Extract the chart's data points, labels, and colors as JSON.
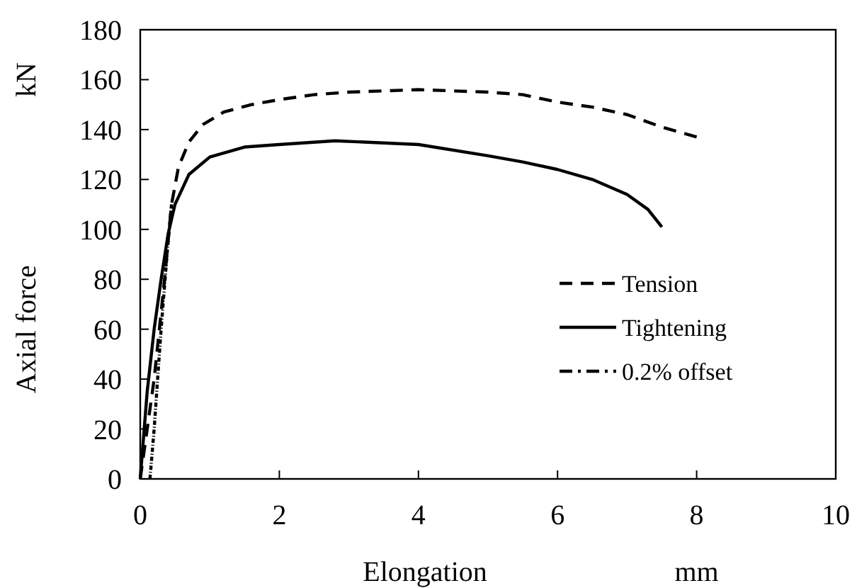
{
  "chart_data": {
    "type": "line",
    "xlabel": "Elongation",
    "ylabel": "Axial force",
    "annotations": [
      "kN",
      "mm"
    ],
    "xlim": [
      0,
      10
    ],
    "xticks": [
      0,
      2,
      4,
      6,
      8,
      10
    ],
    "ylim": [
      0,
      180
    ],
    "yticks": [
      0,
      20,
      40,
      60,
      80,
      100,
      120,
      140,
      160,
      180
    ],
    "grid": false,
    "legend": "right",
    "series": [
      {
        "name": "Tension",
        "color": "#000000",
        "line_style": "dashed",
        "x": [
          0,
          0.2,
          0.35,
          0.45,
          0.55,
          0.7,
          0.9,
          1.2,
          1.6,
          2,
          2.5,
          3,
          4,
          5,
          5.5,
          6,
          6.5,
          7,
          7.5,
          8
        ],
        "values": [
          0,
          40,
          80,
          110,
          125,
          135,
          142,
          147,
          150,
          152,
          154,
          155,
          156,
          155,
          154,
          151,
          149,
          146,
          141,
          137
        ]
      },
      {
        "name": "Tightening",
        "color": "#000000",
        "line_style": "solid",
        "x": [
          0,
          0.1,
          0.2,
          0.3,
          0.4,
          0.5,
          0.7,
          1,
          1.5,
          2,
          2.8,
          4,
          5,
          5.5,
          6,
          6.5,
          7,
          7.3,
          7.5
        ],
        "values": [
          0,
          35,
          60,
          80,
          98,
          110,
          122,
          129,
          133,
          134,
          135.5,
          134,
          129.5,
          127,
          124,
          120,
          114,
          108,
          101
        ]
      },
      {
        "name": "0.2% offset",
        "color": "#000000",
        "line_style": "dashdot",
        "x": [
          0.14,
          0.2,
          0.3,
          0.4,
          0.45
        ],
        "values": [
          0,
          20,
          60,
          95,
          110
        ]
      }
    ]
  }
}
